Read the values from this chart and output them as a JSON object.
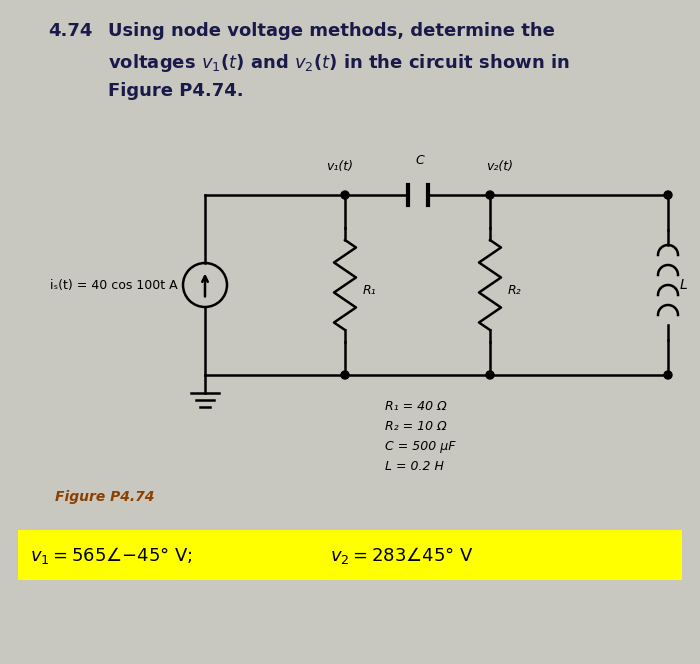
{
  "bg_color": "#c8c8c0",
  "title_num": "4.74",
  "title_rest": "Using node voltage methods, determine the\nvoltages v₁(t) and v₂(t) in the circuit shown in\nFigure P4.74.",
  "circuit": {
    "node1_label": "v₁(t)",
    "node2_label": "v₂(t)",
    "cap_label": "C",
    "source_label": "iₛ(t) = 40 cos 100t A",
    "R1_label": "R₁",
    "R2_label": "R₂",
    "L_label": "L"
  },
  "comp_line1": "R₁ = 40 Ω",
  "comp_line2": "R₂ = 10 Ω",
  "comp_line3": "C = 500 μF",
  "comp_line4": "L = 0.2 H",
  "figure_label": "Figure P4.74",
  "figure_label_color": "#8B4000",
  "answer_highlight": "#FFFF00",
  "ans1": "v₁ = 565∠−45° V;",
  "ans2": "v₂ = 283∠ 45° V"
}
